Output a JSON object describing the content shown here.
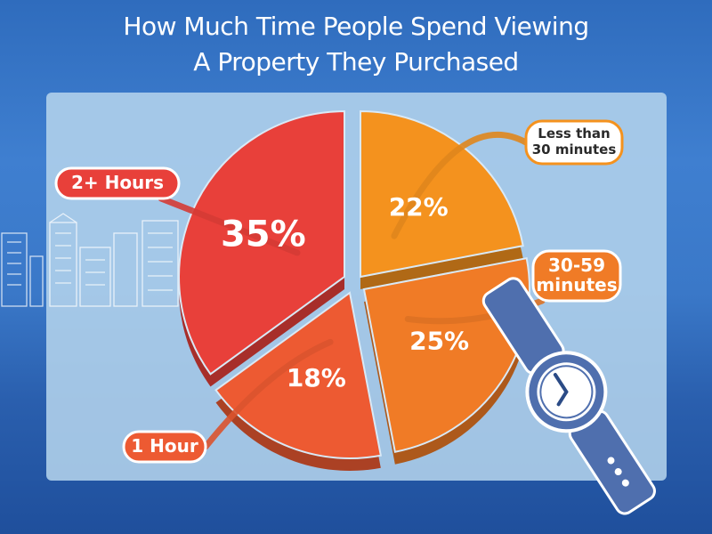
{
  "title": {
    "line1": "How Much Time People Spend Viewing",
    "line2": "A Property They Purchased"
  },
  "chart_data": {
    "type": "pie",
    "title": "How Much Time People Spend Viewing A Property They Purchased",
    "slices": [
      {
        "label": "Less than 30 minutes",
        "label_lines": [
          "Less than",
          "30 minutes"
        ],
        "value": 22,
        "display": "22%",
        "color": "#f4921e"
      },
      {
        "label": "30-59 minutes",
        "label_lines": [
          "30-59",
          "minutes"
        ],
        "value": 25,
        "display": "25%",
        "color": "#f07b26"
      },
      {
        "label": "1 Hour",
        "label_lines": [
          "1 Hour"
        ],
        "value": 18,
        "display": "18%",
        "color": "#ed5a32"
      },
      {
        "label": "2+ Hours",
        "label_lines": [
          "2+ Hours"
        ],
        "value": 35,
        "display": "35%",
        "color": "#e8403a"
      }
    ],
    "exploded": true
  },
  "colors": {
    "background": "#3a78c8",
    "panel": "#b3d3ec",
    "watch_band": "#4f6fae",
    "watch_face": "#ffffff"
  },
  "decorations": {
    "skyline": "city-skyline-outline",
    "watch": "wristwatch-icon"
  }
}
